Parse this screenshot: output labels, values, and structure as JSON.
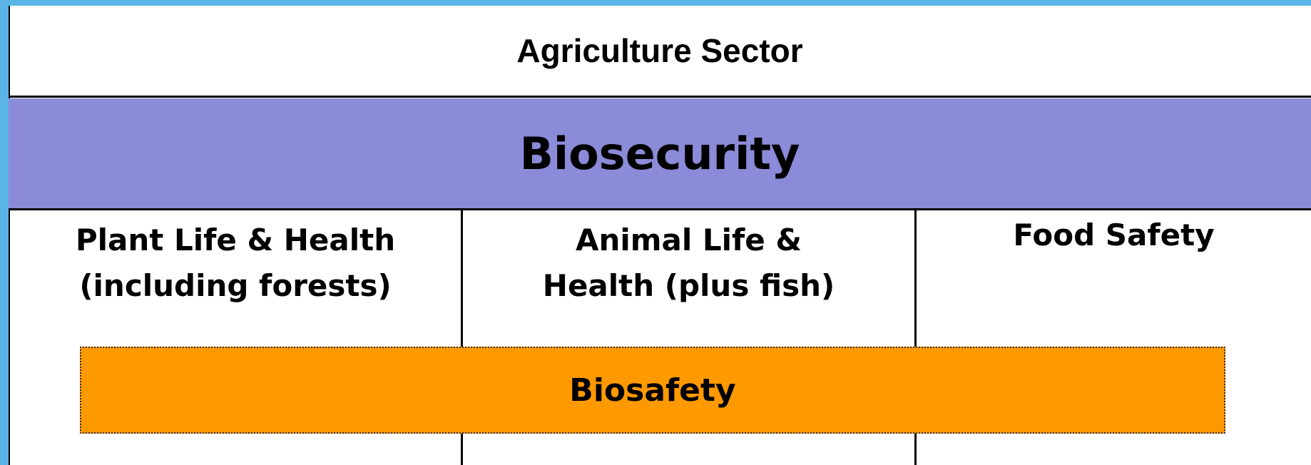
{
  "header": {
    "title": "Agriculture Sector"
  },
  "band": {
    "title": "Biosecurity"
  },
  "columns": [
    {
      "lines": [
        "Plant Life & Health",
        "(including forests)"
      ]
    },
    {
      "lines": [
        "Animal Life &",
        "Health (plus fish)"
      ]
    },
    {
      "lines": [
        "Food Safety"
      ]
    }
  ],
  "overlay": {
    "title": "Biosafety"
  }
}
